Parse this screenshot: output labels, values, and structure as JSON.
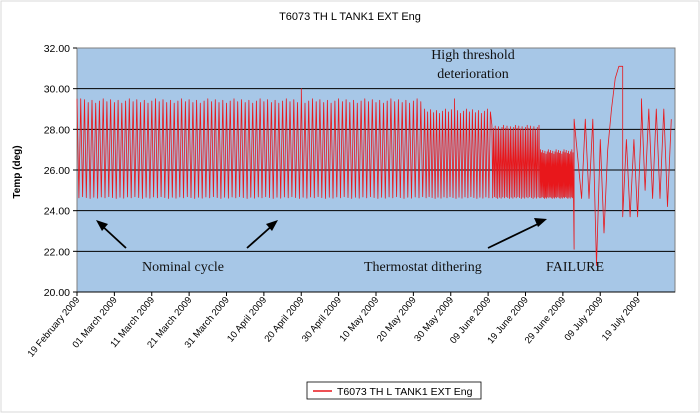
{
  "chart_data": {
    "type": "line",
    "title": "T6073 TH L TANK1 EXT Eng",
    "xlabel": "",
    "ylabel": "Temp (deg)",
    "ylim": [
      20,
      32
    ],
    "yticks": [
      20,
      22,
      24,
      26,
      28,
      30,
      32
    ],
    "ytick_labels": [
      "20.00",
      "22.00",
      "24.00",
      "26.00",
      "28.00",
      "30.00",
      "32.00"
    ],
    "xlim": [
      "2009-02-19",
      "2009-07-29"
    ],
    "xticks": [
      "2009-02-19",
      "2009-03-01",
      "2009-03-11",
      "2009-03-21",
      "2009-03-31",
      "2009-04-10",
      "2009-04-20",
      "2009-04-30",
      "2009-05-10",
      "2009-05-20",
      "2009-05-30",
      "2009-06-09",
      "2009-06-19",
      "2009-06-29",
      "2009-07-09",
      "2009-07-19"
    ],
    "xtick_labels": [
      "19 February 2009",
      "01 March 2009",
      "11 March 2009",
      "21 March 2009",
      "31 March 2009",
      "10 April 2009",
      "20 April 2009",
      "30 April 2009",
      "10 May 2009",
      "20 May 2009",
      "30 May 2009",
      "09 June 2009",
      "19 June 2009",
      "29 June 2009",
      "09 July 2009",
      "19 July 2009"
    ],
    "grid": true,
    "legend": "bottom-center",
    "background_color": "#a7c7e7",
    "series": [
      {
        "name": "T6073 TH L TANK1 EXT Eng",
        "color": "#e8171b",
        "segments": [
          {
            "from": "2009-02-19",
            "to": "2009-05-23",
            "low": 24.6,
            "high": 29.5,
            "cycle_days": 1.0
          },
          {
            "from": "2009-05-23",
            "to": "2009-06-10",
            "low": 24.6,
            "high": 29.0,
            "cycle_days": 0.8
          },
          {
            "from": "2009-06-10",
            "to": "2009-06-23",
            "low": 24.6,
            "high": 28.2,
            "cycle_days": 0.45
          },
          {
            "from": "2009-06-23",
            "to": "2009-07-02",
            "low": 24.6,
            "high": 27.0,
            "cycle_days": 0.3
          }
        ],
        "points": [
          {
            "x": "2009-02-20",
            "y": 29.5
          },
          {
            "x": "2009-04-20",
            "y": 30.0
          },
          {
            "x": "2009-05-31",
            "y": 29.5
          },
          {
            "x": "2009-07-02",
            "y": 22.1
          },
          {
            "x": "2009-07-02",
            "y": 28.5
          },
          {
            "x": "2009-07-04",
            "y": 24.6
          },
          {
            "x": "2009-07-05",
            "y": 28.5
          },
          {
            "x": "2009-07-06",
            "y": 24.6
          },
          {
            "x": "2009-07-07",
            "y": 28.5
          },
          {
            "x": "2009-07-08",
            "y": 21.3
          },
          {
            "x": "2009-07-09",
            "y": 27.5
          },
          {
            "x": "2009-07-10",
            "y": 22.9
          },
          {
            "x": "2009-07-11",
            "y": 27.0
          },
          {
            "x": "2009-07-12",
            "y": 29.0
          },
          {
            "x": "2009-07-13",
            "y": 30.5
          },
          {
            "x": "2009-07-14",
            "y": 31.1
          },
          {
            "x": "2009-07-15",
            "y": 31.1
          },
          {
            "x": "2009-07-15",
            "y": 23.7
          },
          {
            "x": "2009-07-16",
            "y": 27.5
          },
          {
            "x": "2009-07-17",
            "y": 23.7
          },
          {
            "x": "2009-07-18",
            "y": 27.5
          },
          {
            "x": "2009-07-19",
            "y": 23.7
          },
          {
            "x": "2009-07-20",
            "y": 28.5
          },
          {
            "x": "2009-07-20",
            "y": 29.5
          },
          {
            "x": "2009-07-21",
            "y": 25.0
          },
          {
            "x": "2009-07-22",
            "y": 29.0
          },
          {
            "x": "2009-07-23",
            "y": 24.6
          },
          {
            "x": "2009-07-24",
            "y": 29.0
          },
          {
            "x": "2009-07-25",
            "y": 24.6
          },
          {
            "x": "2009-07-26",
            "y": 29.0
          },
          {
            "x": "2009-07-27",
            "y": 24.2
          },
          {
            "x": "2009-07-28",
            "y": 28.5
          }
        ]
      }
    ],
    "annotations": [
      {
        "name": "high-threshold",
        "lines": [
          "High threshold",
          "deterioration"
        ]
      },
      {
        "name": "nominal-cycle",
        "text": "Nominal cycle"
      },
      {
        "name": "thermostat-dithering",
        "text": "Thermostat dithering"
      },
      {
        "name": "failure",
        "text": "FAILURE"
      }
    ]
  }
}
